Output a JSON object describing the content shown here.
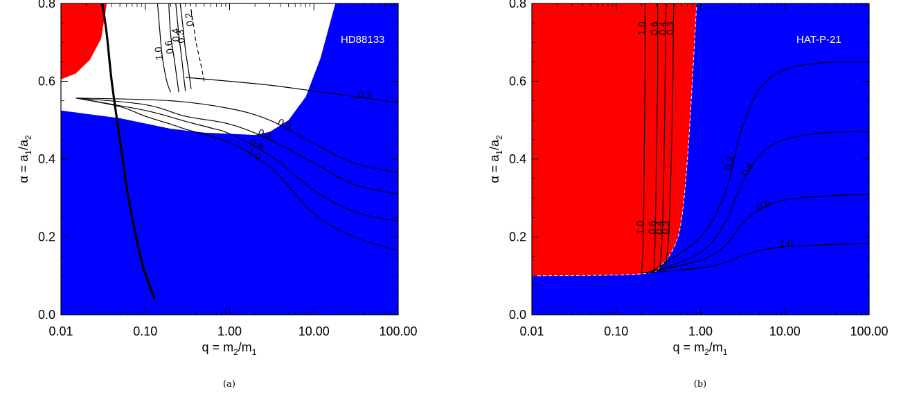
{
  "chart_data": [
    {
      "panel": "(a)",
      "type": "contour",
      "label": "HD88133",
      "xlabel": "q = m_2/m_1",
      "ylabel": "α = a_1/a_2",
      "x_scale": "log",
      "xlim": [
        0.01,
        100
      ],
      "ylim": [
        0.0,
        0.8
      ],
      "x_ticks": [
        "0.01",
        "0.10",
        "1.00",
        "10.00",
        "100.00"
      ],
      "y_ticks": [
        "0.0",
        "0.2",
        "0.4",
        "0.6",
        "0.8"
      ],
      "regions": {
        "blue": {
          "color": "#0000ff",
          "boundary": [
            [
              0.01,
              0.525
            ],
            [
              0.05,
              0.505
            ],
            [
              0.2,
              0.478
            ],
            [
              0.5,
              0.468
            ],
            [
              1,
              0.465
            ],
            [
              2,
              0.462
            ],
            [
              3,
              0.47
            ],
            [
              5,
              0.5
            ],
            [
              8,
              0.56
            ],
            [
              12,
              0.66
            ],
            [
              16,
              0.76
            ],
            [
              18,
              0.8
            ]
          ]
        },
        "red": {
          "color": "#ff0000",
          "boundary": [
            [
              0.01,
              0.605
            ],
            [
              0.015,
              0.62
            ],
            [
              0.022,
              0.655
            ],
            [
              0.03,
              0.71
            ],
            [
              0.035,
              0.8
            ]
          ]
        }
      },
      "contours": [
        {
          "level": "1.0",
          "points": [
            [
              0.015,
              0.557
            ],
            [
              0.05,
              0.535
            ],
            [
              0.1,
              0.51
            ],
            [
              0.2,
              0.49
            ],
            [
              0.3,
              0.477
            ],
            [
              1,
              0.442
            ],
            [
              3,
              0.38
            ],
            [
              10,
              0.26
            ],
            [
              30,
              0.2
            ],
            [
              100,
              0.165
            ]
          ],
          "label_at": [
            25,
            0.205
          ]
        },
        {
          "level": "0.6",
          "points": [
            [
              0.015,
              0.557
            ],
            [
              0.1,
              0.525
            ],
            [
              0.3,
              0.497
            ],
            [
              0.6,
              0.48
            ],
            [
              1,
              0.465
            ],
            [
              3,
              0.41
            ],
            [
              10,
              0.32
            ],
            [
              30,
              0.265
            ],
            [
              100,
              0.24
            ]
          ]
        },
        {
          "level": "0.4",
          "points": [
            [
              0.015,
              0.557
            ],
            [
              0.1,
              0.54
            ],
            [
              0.3,
              0.51
            ],
            [
              1,
              0.49
            ],
            [
              3,
              0.45
            ],
            [
              10,
              0.39
            ],
            [
              30,
              0.335
            ],
            [
              100,
              0.31
            ]
          ]
        },
        {
          "level": "0.3",
          "points": [
            [
              0.015,
              0.557
            ],
            [
              0.2,
              0.55
            ],
            [
              1,
              0.53
            ],
            [
              3,
              0.5
            ],
            [
              10,
              0.44
            ],
            [
              30,
              0.39
            ],
            [
              100,
              0.365
            ]
          ]
        },
        {
          "level": "0.2",
          "points": [
            [
              0.3,
              0.61
            ],
            [
              1,
              0.6
            ],
            [
              3,
              0.59
            ],
            [
              10,
              0.575
            ],
            [
              100,
              0.545
            ]
          ]
        }
      ],
      "upper_contours": [
        {
          "level": "1.0",
          "points": [
            [
              0.2,
              0.572
            ],
            [
              0.18,
              0.6
            ],
            [
              0.16,
              0.66
            ],
            [
              0.15,
              0.72
            ],
            [
              0.14,
              0.8
            ]
          ]
        },
        {
          "level": "0.6",
          "points": [
            [
              0.25,
              0.572
            ],
            [
              0.24,
              0.6
            ],
            [
              0.22,
              0.66
            ],
            [
              0.2,
              0.72
            ],
            [
              0.19,
              0.8
            ]
          ]
        },
        {
          "level": "0.4",
          "points": [
            [
              0.3,
              0.575
            ],
            [
              0.29,
              0.6
            ],
            [
              0.27,
              0.66
            ],
            [
              0.25,
              0.72
            ],
            [
              0.23,
              0.8
            ]
          ]
        },
        {
          "level": "0.3",
          "points": [
            [
              0.35,
              0.58
            ],
            [
              0.33,
              0.62
            ],
            [
              0.3,
              0.68
            ],
            [
              0.28,
              0.74
            ],
            [
              0.26,
              0.8
            ]
          ]
        },
        {
          "level": "0.2",
          "points": [
            [
              0.5,
              0.6
            ],
            [
              0.45,
              0.65
            ],
            [
              0.4,
              0.7
            ],
            [
              0.37,
              0.75
            ],
            [
              0.34,
              0.8
            ]
          ],
          "dashed": true
        }
      ],
      "thick_curve": [
        [
          0.031,
          0.8
        ],
        [
          0.035,
          0.72
        ],
        [
          0.04,
          0.6
        ],
        [
          0.05,
          0.45
        ],
        [
          0.06,
          0.33
        ],
        [
          0.07,
          0.25
        ],
        [
          0.09,
          0.14
        ],
        [
          0.11,
          0.08
        ],
        [
          0.13,
          0.04
        ]
      ]
    },
    {
      "panel": "(b)",
      "type": "contour",
      "label": "HAT-P-21",
      "xlabel": "q = m_2/m_1",
      "ylabel": "α = a_1/a_2",
      "x_scale": "log",
      "xlim": [
        0.01,
        100
      ],
      "ylim": [
        0.0,
        0.8
      ],
      "x_ticks": [
        "0.01",
        "0.10",
        "1.00",
        "10.00",
        "100.00"
      ],
      "y_ticks": [
        "0.0",
        "0.2",
        "0.4",
        "0.6",
        "0.8"
      ],
      "regions": {
        "blue": {
          "color": "#0000ff"
        },
        "red": {
          "color": "#ff0000",
          "boundary": [
            [
              0.01,
              0.1
            ],
            [
              0.2,
              0.105
            ],
            [
              0.35,
              0.13
            ],
            [
              0.5,
              0.18
            ],
            [
              0.6,
              0.25
            ],
            [
              0.7,
              0.4
            ],
            [
              0.8,
              0.6
            ],
            [
              0.9,
              0.8
            ]
          ]
        }
      },
      "contours": [
        {
          "level": "0.3",
          "points": [
            [
              0.25,
              0.108
            ],
            [
              1,
              0.2
            ],
            [
              2,
              0.32
            ],
            [
              3,
              0.47
            ],
            [
              5,
              0.58
            ],
            [
              10,
              0.63
            ],
            [
              30,
              0.648
            ],
            [
              100,
              0.65
            ]
          ]
        },
        {
          "level": "0.4",
          "points": [
            [
              0.25,
              0.108
            ],
            [
              1,
              0.16
            ],
            [
              2,
              0.24
            ],
            [
              3,
              0.33
            ],
            [
              5,
              0.41
            ],
            [
              10,
              0.45
            ],
            [
              30,
              0.468
            ],
            [
              100,
              0.47
            ]
          ]
        },
        {
          "level": "0.6",
          "points": [
            [
              0.22,
              0.108
            ],
            [
              1,
              0.14
            ],
            [
              2,
              0.18
            ],
            [
              3,
              0.23
            ],
            [
              5,
              0.27
            ],
            [
              10,
              0.295
            ],
            [
              30,
              0.305
            ],
            [
              100,
              0.31
            ]
          ]
        },
        {
          "level": "1.0",
          "points": [
            [
              0.2,
              0.107
            ],
            [
              1,
              0.12
            ],
            [
              2,
              0.135
            ],
            [
              3,
              0.15
            ],
            [
              5,
              0.165
            ],
            [
              10,
              0.175
            ],
            [
              30,
              0.18
            ],
            [
              100,
              0.183
            ]
          ]
        }
      ],
      "vertical_contours": [
        {
          "level": "1.0",
          "points": [
            [
              0.2,
              0.108
            ],
            [
              0.21,
              0.2
            ],
            [
              0.215,
              0.4
            ],
            [
              0.22,
              0.6
            ],
            [
              0.22,
              0.8
            ]
          ]
        },
        {
          "level": "0.6",
          "points": [
            [
              0.28,
              0.11
            ],
            [
              0.29,
              0.2
            ],
            [
              0.3,
              0.4
            ],
            [
              0.31,
              0.6
            ],
            [
              0.31,
              0.8
            ]
          ]
        },
        {
          "level": "0.4",
          "points": [
            [
              0.33,
              0.115
            ],
            [
              0.35,
              0.2
            ],
            [
              0.37,
              0.4
            ],
            [
              0.38,
              0.6
            ],
            [
              0.39,
              0.8
            ]
          ]
        },
        {
          "level": "0.3",
          "points": [
            [
              0.38,
              0.12
            ],
            [
              0.42,
              0.2
            ],
            [
              0.45,
              0.4
            ],
            [
              0.47,
              0.6
            ],
            [
              0.48,
              0.8
            ]
          ]
        }
      ]
    }
  ],
  "captions": {
    "a": "(a)",
    "b": "(b)"
  }
}
